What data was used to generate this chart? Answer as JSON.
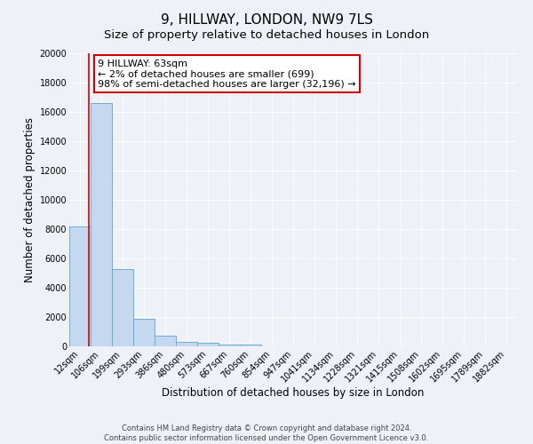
{
  "title": "9, HILLWAY, LONDON, NW9 7LS",
  "subtitle": "Size of property relative to detached houses in London",
  "xlabel": "Distribution of detached houses by size in London",
  "ylabel": "Number of detached properties",
  "bar_labels": [
    "12sqm",
    "106sqm",
    "199sqm",
    "293sqm",
    "386sqm",
    "480sqm",
    "573sqm",
    "667sqm",
    "760sqm",
    "854sqm",
    "947sqm",
    "1041sqm",
    "1134sqm",
    "1228sqm",
    "1321sqm",
    "1415sqm",
    "1508sqm",
    "1602sqm",
    "1695sqm",
    "1789sqm",
    "1882sqm"
  ],
  "bar_heights": [
    8200,
    16600,
    5300,
    1850,
    750,
    300,
    250,
    150,
    100,
    0,
    0,
    0,
    0,
    0,
    0,
    0,
    0,
    0,
    0,
    0,
    0
  ],
  "bar_color": "#c5d8f0",
  "bar_edge_color": "#6aaed6",
  "vline_x": 0.42,
  "vline_color": "#cc0000",
  "annotation_line1": "9 HILLWAY: 63sqm",
  "annotation_line2": "← 2% of detached houses are smaller (699)",
  "annotation_line3": "98% of semi-detached houses are larger (32,196) →",
  "annotation_box_color": "#ffffff",
  "annotation_box_edge_color": "#cc0000",
  "ylim": [
    0,
    20000
  ],
  "yticks": [
    0,
    2000,
    4000,
    6000,
    8000,
    10000,
    12000,
    14000,
    16000,
    18000,
    20000
  ],
  "footer_line1": "Contains HM Land Registry data © Crown copyright and database right 2024.",
  "footer_line2": "Contains public sector information licensed under the Open Government Licence v3.0.",
  "bg_color": "#eef2f8",
  "grid_color": "#ffffff",
  "title_fontsize": 11,
  "subtitle_fontsize": 9.5,
  "axis_label_fontsize": 8.5,
  "tick_fontsize": 7,
  "footer_fontsize": 6,
  "annotation_fontsize": 8
}
